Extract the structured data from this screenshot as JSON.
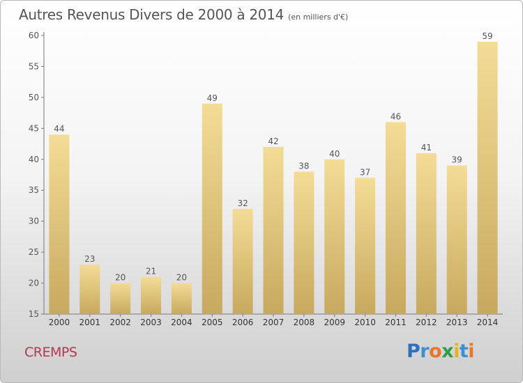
{
  "title": "Autres Revenus Divers de 2000 à 2014",
  "unit_note": "(en milliers d'€)",
  "commune": "CREMPS",
  "brand": {
    "letters": [
      "P",
      "r",
      "o",
      "x",
      "i",
      "t",
      "i"
    ],
    "colors": [
      "#2f6fc0",
      "#3c8fd1",
      "#e8762b",
      "#2e9e4a",
      "#e8b21f",
      "#3c8fd1",
      "#e8762b"
    ]
  },
  "colors": {
    "bar_top": "#f4dc96",
    "bar_bottom": "#c7a95e",
    "text": "#555555"
  },
  "chart_data": {
    "type": "bar",
    "title": "Autres Revenus Divers de 2000 à 2014",
    "subtitle": "(en milliers d'€)",
    "categories": [
      "2000",
      "2001",
      "2002",
      "2003",
      "2004",
      "2005",
      "2006",
      "2007",
      "2008",
      "2009",
      "2010",
      "2011",
      "2012",
      "2013",
      "2014"
    ],
    "values": [
      44,
      23,
      20,
      21,
      20,
      49,
      32,
      42,
      38,
      40,
      37,
      46,
      41,
      39,
      59
    ],
    "ylim": [
      15,
      60
    ],
    "yticks": [
      15,
      20,
      25,
      30,
      35,
      40,
      45,
      50,
      55,
      60
    ],
    "xlabel": "",
    "ylabel": "",
    "grid": false,
    "data_labels": true
  }
}
